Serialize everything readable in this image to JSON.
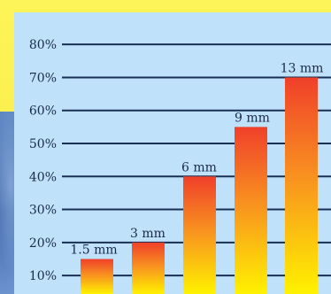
{
  "chart_data": {
    "type": "bar",
    "categories": [
      "1.5 mm",
      "3 mm",
      "6 mm",
      "9 mm",
      "13 mm"
    ],
    "values": [
      15,
      20,
      40,
      55,
      70
    ],
    "yticks": [
      "10%",
      "20%",
      "30%",
      "40%",
      "50%",
      "60%",
      "70%",
      "80%"
    ],
    "ylim": [
      0,
      80
    ],
    "grid": true,
    "title": "",
    "xlabel": "",
    "ylabel": "",
    "colors": {
      "bar_top": "#f0402a",
      "bar_bottom": "#fff200",
      "panel": "#bfe2fa",
      "background": "#fdf45a",
      "grid": "#1a2f55"
    }
  }
}
